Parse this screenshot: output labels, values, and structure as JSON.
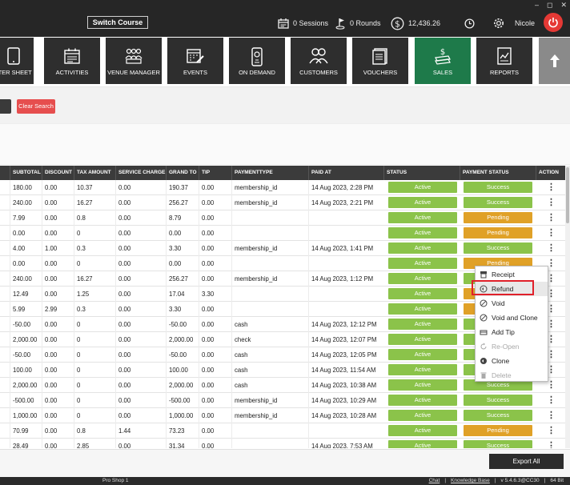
{
  "titlebar": {
    "switch_course": "Switch Course",
    "sessions": "0 Sessions",
    "rounds": "0 Rounds",
    "balance": "12,436.26",
    "username": "Nicole",
    "win_min": "–",
    "win_max": "◻",
    "win_close": "✕"
  },
  "nav": {
    "items": [
      {
        "label": "RTER SHEET",
        "icon": "tablet-icon"
      },
      {
        "label": "ACTIVITIES",
        "icon": "calendar-icon"
      },
      {
        "label": "VENUE MANAGER",
        "icon": "people-icon"
      },
      {
        "label": "EVENTS",
        "icon": "calendar-edit-icon"
      },
      {
        "label": "ON DEMAND",
        "icon": "phone-icon"
      },
      {
        "label": "CUSTOMERS",
        "icon": "customers-icon"
      },
      {
        "label": "VOUCHERS",
        "icon": "voucher-icon"
      },
      {
        "label": "SALES",
        "icon": "money-icon"
      },
      {
        "label": "REPORTS",
        "icon": "report-icon"
      }
    ],
    "active_color": "#1e7a4a",
    "up_arrow": "🡅"
  },
  "search": {
    "clear_label": "Clear Search"
  },
  "table": {
    "columns": [
      "SUBTOTAL",
      "DISCOUNT",
      "TAX AMOUNT",
      "SERVICE CHARGE",
      "GRAND TO",
      "TIP",
      "PAYMENTTYPE",
      "PAID AT",
      "STATUS",
      "PAYMENT STATUS",
      "ACTION"
    ],
    "rows": [
      {
        "subtotal": "180.00",
        "discount": "0.00",
        "tax": "10.37",
        "service": "0.00",
        "grand": "190.37",
        "tip": "0.00",
        "ptype": "membership_id",
        "paid_at": "14 Aug 2023, 2:28 PM",
        "status": "Active",
        "pstatus": "Success"
      },
      {
        "subtotal": "240.00",
        "discount": "0.00",
        "tax": "16.27",
        "service": "0.00",
        "grand": "256.27",
        "tip": "0.00",
        "ptype": "membership_id",
        "paid_at": "14 Aug 2023, 2:21 PM",
        "status": "Active",
        "pstatus": "Success"
      },
      {
        "subtotal": "7.99",
        "discount": "0.00",
        "tax": "0.8",
        "service": "0.00",
        "grand": "8.79",
        "tip": "0.00",
        "ptype": "",
        "paid_at": "",
        "status": "Active",
        "pstatus": "Pending"
      },
      {
        "subtotal": "0.00",
        "discount": "0.00",
        "tax": "0",
        "service": "0.00",
        "grand": "0.00",
        "tip": "0.00",
        "ptype": "",
        "paid_at": "",
        "status": "Active",
        "pstatus": "Pending"
      },
      {
        "subtotal": "4.00",
        "discount": "1.00",
        "tax": "0.3",
        "service": "0.00",
        "grand": "3.30",
        "tip": "0.00",
        "ptype": "membership_id",
        "paid_at": "14 Aug 2023, 1:41 PM",
        "status": "Active",
        "pstatus": "Success"
      },
      {
        "subtotal": "0.00",
        "discount": "0.00",
        "tax": "0",
        "service": "0.00",
        "grand": "0.00",
        "tip": "0.00",
        "ptype": "",
        "paid_at": "",
        "status": "Active",
        "pstatus": "Pending"
      },
      {
        "subtotal": "240.00",
        "discount": "0.00",
        "tax": "16.27",
        "service": "0.00",
        "grand": "256.27",
        "tip": "0.00",
        "ptype": "membership_id",
        "paid_at": "14 Aug 2023, 1:12 PM",
        "status": "Active",
        "pstatus": "Success"
      },
      {
        "subtotal": "12.49",
        "discount": "0.00",
        "tax": "1.25",
        "service": "0.00",
        "grand": "17.04",
        "tip": "3.30",
        "ptype": "",
        "paid_at": "",
        "status": "Active",
        "pstatus": "Pending"
      },
      {
        "subtotal": "5.99",
        "discount": "2.99",
        "tax": "0.3",
        "service": "0.00",
        "grand": "3.30",
        "tip": "0.00",
        "ptype": "",
        "paid_at": "",
        "status": "Active",
        "pstatus": "Pending"
      },
      {
        "subtotal": "-50.00",
        "discount": "0.00",
        "tax": "0",
        "service": "0.00",
        "grand": "-50.00",
        "tip": "0.00",
        "ptype": "cash",
        "paid_at": "14 Aug 2023, 12:12 PM",
        "status": "Active",
        "pstatus": "Success"
      },
      {
        "subtotal": "2,000.00",
        "discount": "0.00",
        "tax": "0",
        "service": "0.00",
        "grand": "2,000.00",
        "tip": "0.00",
        "ptype": "check",
        "paid_at": "14 Aug 2023, 12:07 PM",
        "status": "Active",
        "pstatus": "Success"
      },
      {
        "subtotal": "-50.00",
        "discount": "0.00",
        "tax": "0",
        "service": "0.00",
        "grand": "-50.00",
        "tip": "0.00",
        "ptype": "cash",
        "paid_at": "14 Aug 2023, 12:05 PM",
        "status": "Active",
        "pstatus": "Success"
      },
      {
        "subtotal": "100.00",
        "discount": "0.00",
        "tax": "0",
        "service": "0.00",
        "grand": "100.00",
        "tip": "0.00",
        "ptype": "cash",
        "paid_at": "14 Aug 2023, 11:54 AM",
        "status": "Active",
        "pstatus": "Success"
      },
      {
        "subtotal": "2,000.00",
        "discount": "0.00",
        "tax": "0",
        "service": "0.00",
        "grand": "2,000.00",
        "tip": "0.00",
        "ptype": "cash",
        "paid_at": "14 Aug 2023, 10:38 AM",
        "status": "Active",
        "pstatus": "Success"
      },
      {
        "subtotal": "-500.00",
        "discount": "0.00",
        "tax": "0",
        "service": "0.00",
        "grand": "-500.00",
        "tip": "0.00",
        "ptype": "membership_id",
        "paid_at": "14 Aug 2023, 10:29 AM",
        "status": "Active",
        "pstatus": "Success"
      },
      {
        "subtotal": "1,000.00",
        "discount": "0.00",
        "tax": "0",
        "service": "0.00",
        "grand": "1,000.00",
        "tip": "0.00",
        "ptype": "membership_id",
        "paid_at": "14 Aug 2023, 10:28 AM",
        "status": "Active",
        "pstatus": "Success"
      },
      {
        "subtotal": "70.99",
        "discount": "0.00",
        "tax": "0.8",
        "service": "1.44",
        "grand": "73.23",
        "tip": "0.00",
        "ptype": "",
        "paid_at": "",
        "status": "Active",
        "pstatus": "Pending"
      },
      {
        "subtotal": "28.49",
        "discount": "0.00",
        "tax": "2.85",
        "service": "0.00",
        "grand": "31.34",
        "tip": "0.00",
        "ptype": "",
        "paid_at": "14 Aug 2023, 7:53 AM",
        "status": "Active",
        "pstatus": "Success"
      }
    ],
    "action_glyph": "⋮",
    "colors": {
      "active": "#8bc34a",
      "success": "#8bc34a",
      "pending": "#e0a127"
    }
  },
  "context_menu": {
    "items": [
      {
        "label": "Receipt",
        "icon": "receipt-icon",
        "disabled": false
      },
      {
        "label": "Refund",
        "icon": "refund-icon",
        "disabled": false
      },
      {
        "label": "Void",
        "icon": "void-icon",
        "disabled": false
      },
      {
        "label": "Void and Clone",
        "icon": "void-clone-icon",
        "disabled": false
      },
      {
        "label": "Add Tip",
        "icon": "tip-icon",
        "disabled": false
      },
      {
        "label": "Re-Open",
        "icon": "reopen-icon",
        "disabled": true
      },
      {
        "label": "Clone",
        "icon": "clone-icon",
        "disabled": false
      },
      {
        "label": "Delete",
        "icon": "trash-icon",
        "disabled": true
      }
    ],
    "highlight_color": "#e0202a"
  },
  "footer": {
    "export_label": "Export All",
    "shop": "Pro Shop 1",
    "chat": "Chat",
    "sep": "|",
    "kb": "Knowledge Base",
    "version": "v 5.4.6.3@CC30",
    "bits": "64 Bit"
  }
}
